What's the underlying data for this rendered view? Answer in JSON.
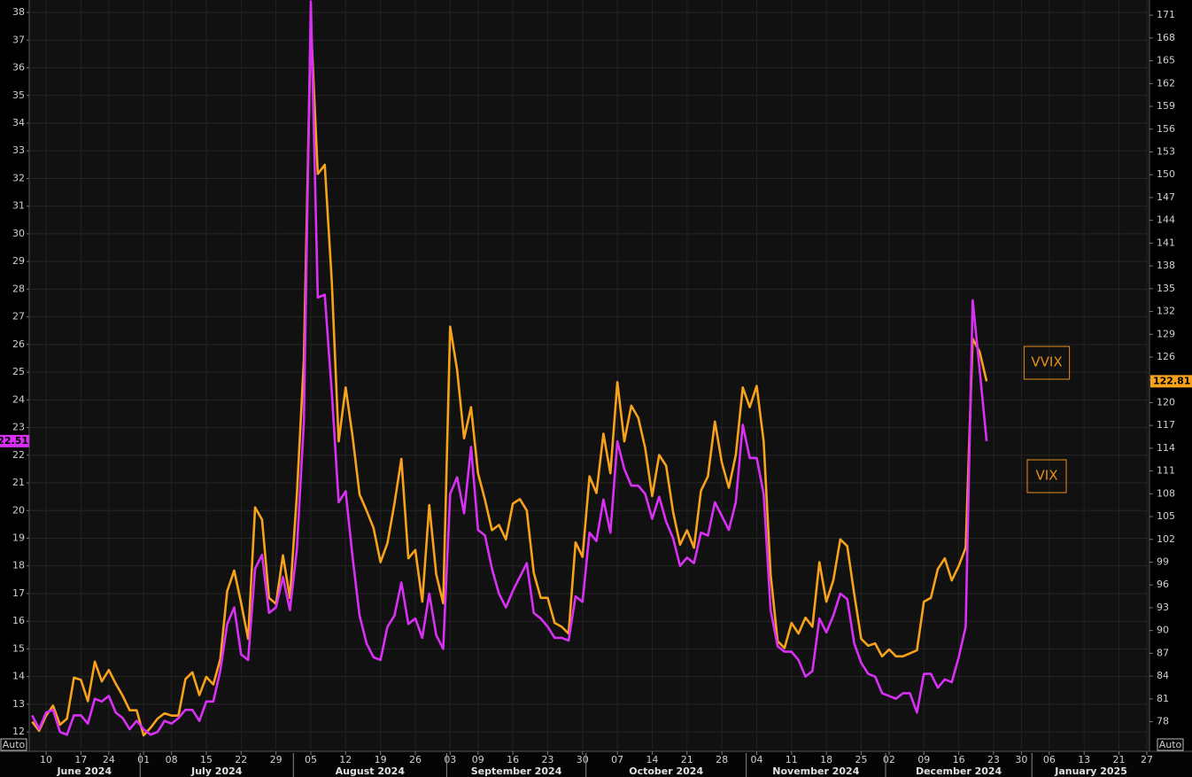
{
  "chart_data": {
    "type": "line",
    "x": [
      "2024-06-06",
      "2024-06-07",
      "2024-06-10",
      "2024-06-11",
      "2024-06-12",
      "2024-06-13",
      "2024-06-14",
      "2024-06-17",
      "2024-06-18",
      "2024-06-20",
      "2024-06-21",
      "2024-06-24",
      "2024-06-25",
      "2024-06-26",
      "2024-06-27",
      "2024-06-28",
      "2024-07-01",
      "2024-07-02",
      "2024-07-03",
      "2024-07-05",
      "2024-07-08",
      "2024-07-09",
      "2024-07-10",
      "2024-07-11",
      "2024-07-12",
      "2024-07-15",
      "2024-07-16",
      "2024-07-17",
      "2024-07-18",
      "2024-07-19",
      "2024-07-22",
      "2024-07-23",
      "2024-07-24",
      "2024-07-25",
      "2024-07-26",
      "2024-07-29",
      "2024-07-30",
      "2024-07-31",
      "2024-08-01",
      "2024-08-02",
      "2024-08-05",
      "2024-08-06",
      "2024-08-07",
      "2024-08-08",
      "2024-08-09",
      "2024-08-12",
      "2024-08-13",
      "2024-08-14",
      "2024-08-15",
      "2024-08-16",
      "2024-08-19",
      "2024-08-20",
      "2024-08-21",
      "2024-08-22",
      "2024-08-23",
      "2024-08-26",
      "2024-08-27",
      "2024-08-28",
      "2024-08-29",
      "2024-08-30",
      "2024-09-03",
      "2024-09-04",
      "2024-09-05",
      "2024-09-06",
      "2024-09-09",
      "2024-09-10",
      "2024-09-11",
      "2024-09-12",
      "2024-09-13",
      "2024-09-16",
      "2024-09-17",
      "2024-09-18",
      "2024-09-19",
      "2024-09-20",
      "2024-09-23",
      "2024-09-24",
      "2024-09-25",
      "2024-09-26",
      "2024-09-27",
      "2024-09-30",
      "2024-10-01",
      "2024-10-02",
      "2024-10-03",
      "2024-10-04",
      "2024-10-07",
      "2024-10-08",
      "2024-10-09",
      "2024-10-10",
      "2024-10-11",
      "2024-10-14",
      "2024-10-15",
      "2024-10-16",
      "2024-10-17",
      "2024-10-18",
      "2024-10-21",
      "2024-10-22",
      "2024-10-23",
      "2024-10-24",
      "2024-10-25",
      "2024-10-28",
      "2024-10-29",
      "2024-10-30",
      "2024-10-31",
      "2024-11-01",
      "2024-11-04",
      "2024-11-05",
      "2024-11-06",
      "2024-11-07",
      "2024-11-08",
      "2024-11-11",
      "2024-11-12",
      "2024-11-13",
      "2024-11-14",
      "2024-11-15",
      "2024-11-18",
      "2024-11-19",
      "2024-11-20",
      "2024-11-21",
      "2024-11-22",
      "2024-11-25",
      "2024-11-26",
      "2024-11-27",
      "2024-11-29",
      "2024-12-02",
      "2024-12-03",
      "2024-12-04",
      "2024-12-05",
      "2024-12-06",
      "2024-12-09",
      "2024-12-10",
      "2024-12-11",
      "2024-12-12",
      "2024-12-13",
      "2024-12-16",
      "2024-12-17",
      "2024-12-18",
      "2024-12-19",
      "2024-12-20",
      "2024-12-23",
      "2024-12-24",
      "2024-12-26",
      "2024-12-27",
      "2024-12-30",
      "2024-12-31",
      "2025-01-02",
      "2025-01-03",
      "2025-01-06",
      "2025-01-07",
      "2025-01-08",
      "2025-01-09",
      "2025-01-10",
      "2025-01-13",
      "2025-01-14",
      "2025-01-15",
      "2025-01-16",
      "2025-01-17",
      "2025-01-21",
      "2025-01-22",
      "2025-01-23",
      "2025-01-24",
      "2025-01-27"
    ],
    "series": [
      {
        "name": "VVIX",
        "color": "#f7a21b",
        "axis": "y2",
        "values": [
          78.0,
          76.8,
          78.8,
          80.1,
          77.6,
          78.4,
          83.8,
          83.5,
          80.7,
          85.9,
          83.3,
          84.8,
          83.0,
          81.4,
          79.5,
          79.5,
          76.2,
          77.2,
          78.4,
          79.1,
          78.8,
          78.8,
          83.6,
          84.5,
          81.5,
          83.9,
          82.9,
          86.2,
          95.2,
          97.9,
          93.6,
          88.9,
          106.2,
          104.6,
          94.3,
          93.5,
          99.9,
          94.3,
          107.9,
          125.5,
          170.1,
          150.1,
          151.3,
          136.1,
          114.9,
          122.0,
          115.5,
          107.9,
          105.8,
          103.5,
          99.0,
          101.5,
          106.7,
          112.6,
          99.5,
          100.6,
          93.8,
          106.5,
          97.4,
          93.6,
          130.0,
          124.3,
          115.3,
          119.4,
          110.7,
          107.2,
          103.2,
          103.9,
          102.0,
          106.7,
          107.3,
          105.8,
          97.6,
          94.3,
          94.3,
          91.0,
          90.5,
          89.6,
          101.6,
          99.7,
          110.3,
          108.1,
          115.9,
          110.7,
          122.7,
          114.9,
          119.6,
          118.0,
          114.0,
          107.7,
          113.1,
          111.7,
          105.6,
          101.3,
          103.2,
          100.9,
          108.4,
          110.3,
          117.5,
          112.1,
          108.8,
          113.1,
          122.0,
          119.4,
          122.2,
          114.9,
          97.4,
          88.6,
          87.7,
          91.0,
          89.6,
          91.7,
          90.5,
          99.0,
          93.8,
          96.6,
          102.0,
          101.1,
          94.8,
          88.9,
          88.0,
          88.3,
          86.6,
          87.5,
          86.6,
          86.6,
          87.0,
          87.4,
          93.8,
          94.3,
          98.1,
          99.5,
          96.6,
          98.5,
          100.9,
          128.4,
          126.7,
          122.81,
          null,
          null,
          null,
          null,
          null,
          null,
          null,
          null,
          null,
          null,
          null,
          null,
          null,
          null,
          null,
          null,
          null,
          null,
          null,
          null,
          null,
          null,
          null
        ]
      },
      {
        "name": "VIX",
        "color": "#d930f5",
        "axis": "y",
        "values": [
          12.6,
          12.1,
          12.7,
          12.8,
          12.0,
          11.9,
          12.6,
          12.6,
          12.3,
          13.2,
          13.1,
          13.3,
          12.7,
          12.5,
          12.1,
          12.4,
          12.1,
          11.9,
          12.0,
          12.4,
          12.3,
          12.5,
          12.8,
          12.8,
          12.4,
          13.1,
          13.1,
          14.2,
          15.9,
          16.5,
          14.8,
          14.6,
          17.9,
          18.4,
          16.3,
          16.5,
          17.6,
          16.4,
          18.6,
          23.2,
          38.4,
          27.7,
          27.8,
          24.3,
          20.3,
          20.7,
          18.3,
          16.2,
          15.2,
          14.7,
          14.6,
          15.8,
          16.2,
          17.4,
          15.9,
          16.1,
          15.4,
          17.0,
          15.5,
          15.0,
          20.6,
          21.2,
          19.9,
          22.3,
          19.3,
          19.1,
          17.9,
          17.0,
          16.5,
          17.1,
          17.6,
          18.1,
          16.3,
          16.1,
          15.8,
          15.4,
          15.4,
          15.3,
          16.9,
          16.7,
          19.2,
          18.9,
          20.4,
          19.2,
          22.5,
          21.5,
          20.9,
          20.9,
          20.6,
          19.7,
          20.5,
          19.6,
          19.0,
          18.0,
          18.3,
          18.1,
          19.2,
          19.1,
          20.3,
          19.8,
          19.3,
          20.3,
          23.1,
          21.9,
          21.9,
          20.6,
          16.4,
          15.1,
          14.9,
          14.9,
          14.6,
          14.0,
          14.2,
          16.1,
          15.6,
          16.2,
          17.0,
          16.8,
          15.2,
          14.5,
          14.1,
          14.0,
          13.4,
          13.3,
          13.2,
          13.4,
          13.4,
          12.7,
          14.1,
          14.1,
          13.6,
          13.9,
          13.8,
          14.7,
          15.8,
          27.6,
          25.1,
          22.51,
          null,
          null,
          null,
          null,
          null,
          null,
          null,
          null,
          null,
          null,
          null,
          null,
          null,
          null,
          null,
          null,
          null,
          null,
          null,
          null,
          null,
          null,
          null
        ]
      }
    ],
    "ylim": [
      11.3,
      38.45
    ],
    "yticks": [
      12,
      13,
      14,
      15,
      16,
      17,
      18,
      19,
      20,
      21,
      22,
      23,
      24,
      25,
      26,
      27,
      28,
      29,
      30,
      31,
      32,
      33,
      34,
      35,
      36,
      37,
      38
    ],
    "y2lim": [
      74.1,
      173
    ],
    "y2ticks": [
      78,
      81,
      84,
      87,
      90,
      93,
      96,
      99,
      102,
      105,
      108,
      111,
      114,
      117,
      120,
      123,
      126,
      129,
      132,
      135,
      138,
      141,
      144,
      147,
      150,
      153,
      156,
      159,
      162,
      165,
      168,
      171
    ],
    "xticks": [
      {
        "value": "2024-06-10",
        "label": "10"
      },
      {
        "value": "2024-06-17",
        "label": "17"
      },
      {
        "value": "2024-06-24",
        "label": "24"
      },
      {
        "value": "2024-07-01",
        "label": "01"
      },
      {
        "value": "2024-07-08",
        "label": "08"
      },
      {
        "value": "2024-07-15",
        "label": "15"
      },
      {
        "value": "2024-07-22",
        "label": "22"
      },
      {
        "value": "2024-07-29",
        "label": "29"
      },
      {
        "value": "2024-08-05",
        "label": "05"
      },
      {
        "value": "2024-08-12",
        "label": "12"
      },
      {
        "value": "2024-08-19",
        "label": "19"
      },
      {
        "value": "2024-08-26",
        "label": "26"
      },
      {
        "value": "2024-09-03",
        "label": "03"
      },
      {
        "value": "2024-09-09",
        "label": "09"
      },
      {
        "value": "2024-09-16",
        "label": "16"
      },
      {
        "value": "2024-09-23",
        "label": "23"
      },
      {
        "value": "2024-09-30",
        "label": "30"
      },
      {
        "value": "2024-10-07",
        "label": "07"
      },
      {
        "value": "2024-10-14",
        "label": "14"
      },
      {
        "value": "2024-10-21",
        "label": "21"
      },
      {
        "value": "2024-10-28",
        "label": "28"
      },
      {
        "value": "2024-11-04",
        "label": "04"
      },
      {
        "value": "2024-11-11",
        "label": "11"
      },
      {
        "value": "2024-11-18",
        "label": "18"
      },
      {
        "value": "2024-11-25",
        "label": "25"
      },
      {
        "value": "2024-12-02",
        "label": "02"
      },
      {
        "value": "2024-12-09",
        "label": "09"
      },
      {
        "value": "2024-12-16",
        "label": "16"
      },
      {
        "value": "2024-12-23",
        "label": "23"
      },
      {
        "value": "2024-12-30",
        "label": "30"
      },
      {
        "value": "2025-01-06",
        "label": "06"
      },
      {
        "value": "2025-01-13",
        "label": "13"
      },
      {
        "value": "2025-01-21",
        "label": "21"
      },
      {
        "value": "2025-01-27",
        "label": "27"
      }
    ],
    "months": [
      {
        "value": "2024-06",
        "label": "June 2024"
      },
      {
        "value": "2024-07",
        "label": "July 2024"
      },
      {
        "value": "2024-08",
        "label": "August 2024"
      },
      {
        "value": "2024-09",
        "label": "September 2024"
      },
      {
        "value": "2024-10",
        "label": "October 2024"
      },
      {
        "value": "2024-11",
        "label": "November 2024"
      },
      {
        "value": "2024-12",
        "label": "December 2024"
      },
      {
        "value": "2025-01",
        "label": "January 2025"
      }
    ],
    "y_scale_button": "Auto",
    "y2_scale_button": "Auto",
    "legend_color": "#e8901a",
    "grid": true
  }
}
